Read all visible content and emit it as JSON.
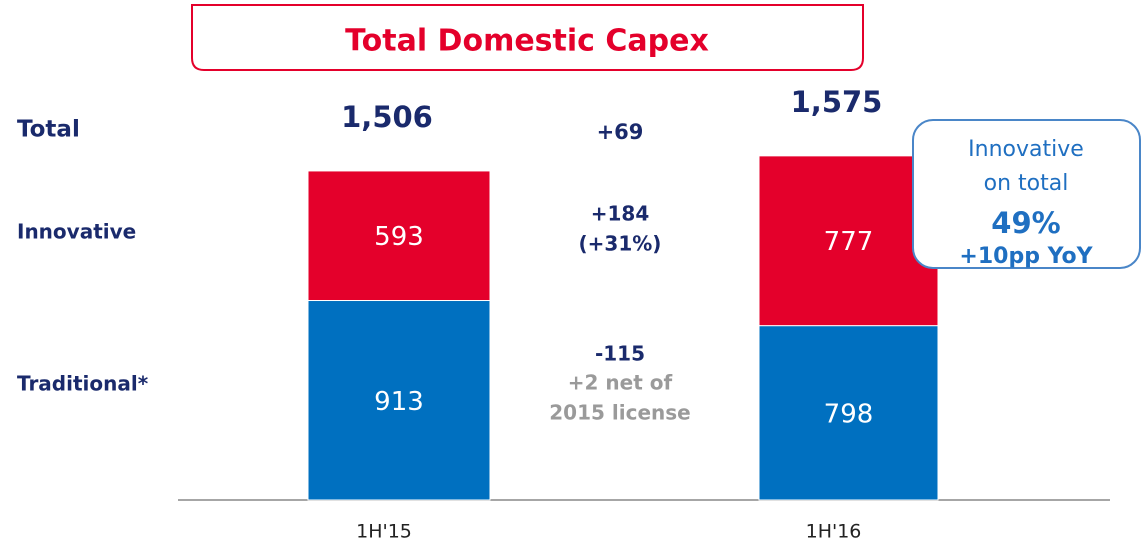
{
  "chart_data": {
    "type": "stacked_bar",
    "title": "Total Domestic Capex",
    "categories": [
      "1H'15",
      "1H'16"
    ],
    "series": [
      {
        "name": "Traditional*",
        "color": "#0070c0",
        "values": [
          913,
          798
        ]
      },
      {
        "name": "Innovative",
        "color": "#e4002b",
        "values": [
          593,
          777
        ]
      }
    ],
    "total_label": "Total",
    "totals": [
      {
        "value": 1506,
        "label": "1,506"
      },
      {
        "value": 1575,
        "label": "1,575"
      }
    ],
    "changes": {
      "total": "+69",
      "innovative": [
        "+184",
        "(+31%)"
      ],
      "traditional": [
        "-115",
        "+2 net of",
        "2015 license"
      ]
    },
    "callout": [
      "Innovative",
      "on total",
      "49%",
      "+10pp YoY"
    ]
  }
}
